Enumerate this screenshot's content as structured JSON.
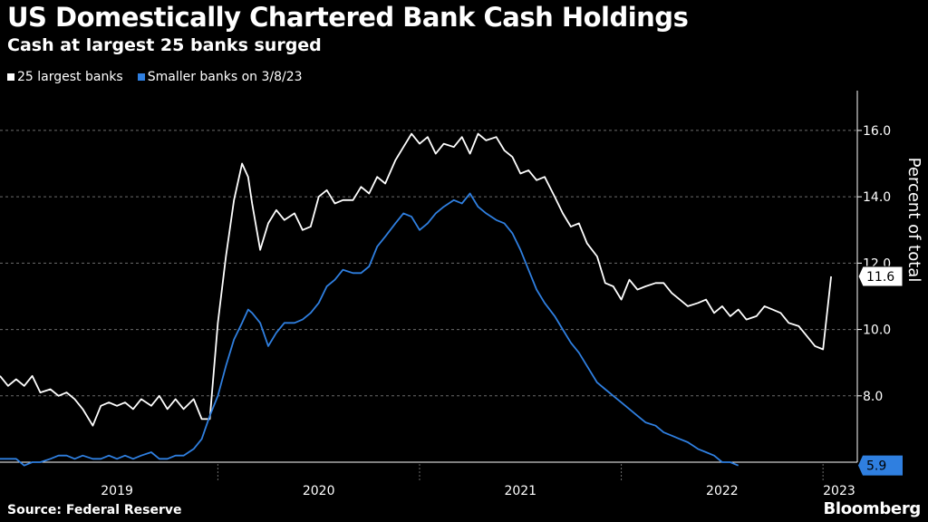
{
  "header": {
    "title": "US Domestically Chartered Bank Cash Holdings",
    "subtitle": "Cash at largest 25 banks surged"
  },
  "footer": {
    "source": "Source: Federal Reserve",
    "brand": "Bloomberg"
  },
  "colors": {
    "background": "#000000",
    "large_banks": "#ffffff",
    "small_banks": "#2f7fe0",
    "grid": "#6b6b6b"
  },
  "chart_data": {
    "type": "line",
    "title": "US Domestically Chartered Bank Cash Holdings",
    "subtitle": "Cash at largest 25 banks surged",
    "ylabel": "Percent of total",
    "xlabel": "",
    "y_axis_position": "right",
    "legend_position": "top-left",
    "grid": "horizontal-dashed",
    "xlim": [
      2018.92,
      2023.17
    ],
    "ylim": [
      6.0,
      17.2
    ],
    "y_ticks": [
      8.0,
      10.0,
      12.0,
      14.0,
      16.0
    ],
    "y_tick_labels": [
      "8.0",
      "10.0",
      "12.0",
      "14.0",
      "16.0"
    ],
    "x_labels": [
      {
        "label": "2019",
        "value": 2019.5
      },
      {
        "label": "2020",
        "value": 2020.5
      },
      {
        "label": "2021",
        "value": 2021.5
      },
      {
        "label": "2022",
        "value": 2022.5
      },
      {
        "label": "2023",
        "value": 2023.08
      }
    ],
    "x_dividers": [
      2020.0,
      2021.0,
      2022.0,
      2023.0
    ],
    "series": [
      {
        "name": "25 largest banks",
        "color": "#ffffff",
        "last_value_label": "11.6",
        "x": [
          2018.92,
          2018.96,
          2019.0,
          2019.04,
          2019.08,
          2019.12,
          2019.17,
          2019.21,
          2019.25,
          2019.29,
          2019.33,
          2019.38,
          2019.42,
          2019.46,
          2019.5,
          2019.54,
          2019.58,
          2019.62,
          2019.67,
          2019.71,
          2019.75,
          2019.79,
          2019.83,
          2019.88,
          2019.92,
          2019.96,
          2020.0,
          2020.04,
          2020.08,
          2020.12,
          2020.15,
          2020.17,
          2020.21,
          2020.25,
          2020.29,
          2020.33,
          2020.38,
          2020.42,
          2020.46,
          2020.5,
          2020.54,
          2020.58,
          2020.62,
          2020.67,
          2020.71,
          2020.75,
          2020.79,
          2020.83,
          2020.88,
          2020.92,
          2020.96,
          2021.0,
          2021.04,
          2021.08,
          2021.12,
          2021.17,
          2021.21,
          2021.25,
          2021.29,
          2021.33,
          2021.38,
          2021.42,
          2021.46,
          2021.5,
          2021.54,
          2021.58,
          2021.62,
          2021.67,
          2021.71,
          2021.75,
          2021.79,
          2021.83,
          2021.88,
          2021.92,
          2021.96,
          2022.0,
          2022.04,
          2022.08,
          2022.12,
          2022.17,
          2022.21,
          2022.25,
          2022.29,
          2022.33,
          2022.38,
          2022.42,
          2022.46,
          2022.5,
          2022.54,
          2022.58,
          2022.62,
          2022.67,
          2022.71,
          2022.75,
          2022.79,
          2022.83,
          2022.88,
          2022.92,
          2022.96,
          2023.0,
          2023.04,
          2023.08,
          2023.12,
          2023.15
        ],
        "values": [
          8.6,
          8.3,
          8.5,
          8.3,
          8.6,
          8.1,
          8.2,
          8.0,
          8.1,
          7.9,
          7.6,
          7.1,
          7.7,
          7.8,
          7.7,
          7.8,
          7.6,
          7.9,
          7.7,
          8.0,
          7.6,
          7.9,
          7.6,
          7.9,
          7.3,
          7.3,
          10.2,
          12.2,
          13.9,
          15.0,
          14.6,
          13.8,
          12.4,
          13.2,
          13.6,
          13.3,
          13.5,
          13.0,
          13.1,
          14.0,
          14.2,
          13.8,
          13.9,
          13.9,
          14.3,
          14.1,
          14.6,
          14.4,
          15.1,
          15.5,
          15.9,
          15.6,
          15.8,
          15.3,
          15.6,
          15.5,
          15.8,
          15.3,
          15.9,
          15.7,
          15.8,
          15.4,
          15.2,
          14.7,
          14.8,
          14.5,
          14.6,
          14.0,
          13.5,
          13.1,
          13.2,
          12.6,
          12.2,
          11.4,
          11.3,
          10.9,
          11.5,
          11.2,
          11.3,
          11.4,
          11.4,
          11.1,
          10.9,
          10.7,
          10.8,
          10.9,
          10.5,
          10.7,
          10.4,
          10.6,
          10.3,
          10.4,
          10.7,
          10.6,
          10.5,
          10.2,
          10.1,
          9.8,
          9.5,
          9.4,
          11.6,
          null,
          null,
          null
        ]
      },
      {
        "name": "Smaller banks on 3/8/23",
        "color": "#2f7fe0",
        "last_value_label": "5.9",
        "x": [
          2018.92,
          2018.96,
          2019.0,
          2019.04,
          2019.08,
          2019.12,
          2019.17,
          2019.21,
          2019.25,
          2019.29,
          2019.33,
          2019.38,
          2019.42,
          2019.46,
          2019.5,
          2019.54,
          2019.58,
          2019.62,
          2019.67,
          2019.71,
          2019.75,
          2019.79,
          2019.83,
          2019.88,
          2019.92,
          2019.96,
          2020.0,
          2020.04,
          2020.08,
          2020.12,
          2020.15,
          2020.17,
          2020.21,
          2020.25,
          2020.29,
          2020.33,
          2020.38,
          2020.42,
          2020.46,
          2020.5,
          2020.54,
          2020.58,
          2020.62,
          2020.67,
          2020.71,
          2020.75,
          2020.79,
          2020.83,
          2020.88,
          2020.92,
          2020.96,
          2021.0,
          2021.04,
          2021.08,
          2021.12,
          2021.17,
          2021.21,
          2021.25,
          2021.29,
          2021.33,
          2021.38,
          2021.42,
          2021.46,
          2021.5,
          2021.54,
          2021.58,
          2021.62,
          2021.67,
          2021.71,
          2021.75,
          2021.79,
          2021.83,
          2021.88,
          2021.92,
          2021.96,
          2022.0,
          2022.04,
          2022.08,
          2022.12,
          2022.17,
          2022.21,
          2022.25,
          2022.29,
          2022.33,
          2022.38,
          2022.42,
          2022.46,
          2022.5,
          2022.54,
          2022.58,
          2022.62,
          2022.67,
          2022.71,
          2022.75,
          2022.79,
          2022.83,
          2022.88,
          2022.92,
          2022.96,
          2023.0,
          2023.04,
          2023.08,
          2023.12,
          2023.15
        ],
        "values": [
          6.1,
          6.1,
          6.1,
          5.9,
          6.0,
          6.0,
          6.1,
          6.2,
          6.2,
          6.1,
          6.2,
          6.1,
          6.1,
          6.2,
          6.1,
          6.2,
          6.1,
          6.2,
          6.3,
          6.1,
          6.1,
          6.2,
          6.2,
          6.4,
          6.7,
          7.4,
          8.0,
          8.9,
          9.7,
          10.2,
          10.6,
          10.5,
          10.2,
          9.5,
          9.9,
          10.2,
          10.2,
          10.3,
          10.5,
          10.8,
          11.3,
          11.5,
          11.8,
          11.7,
          11.7,
          11.9,
          12.5,
          12.8,
          13.2,
          13.5,
          13.4,
          13.0,
          13.2,
          13.5,
          13.7,
          13.9,
          13.8,
          14.1,
          13.7,
          13.5,
          13.3,
          13.2,
          12.9,
          12.4,
          11.8,
          11.2,
          10.8,
          10.4,
          10.0,
          9.6,
          9.3,
          8.9,
          8.4,
          8.2,
          8.0,
          7.8,
          7.6,
          7.4,
          7.2,
          7.1,
          6.9,
          6.8,
          6.7,
          6.6,
          6.4,
          6.3,
          6.2,
          6.0,
          6.0,
          5.9,
          null,
          null,
          null,
          null,
          null,
          null,
          null,
          null,
          null,
          null,
          null,
          null,
          null,
          null
        ]
      }
    ]
  }
}
